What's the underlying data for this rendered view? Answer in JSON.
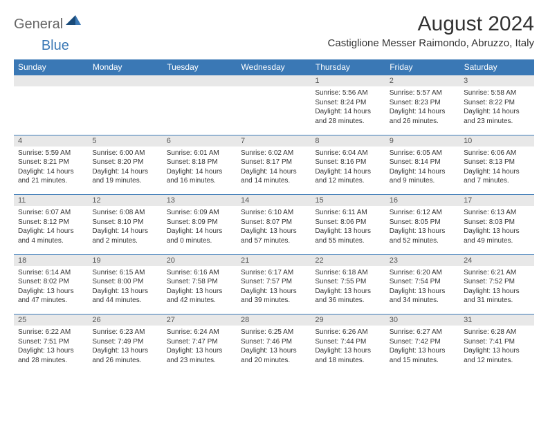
{
  "logo": {
    "part1": "General",
    "part2": "Blue"
  },
  "title": "August 2024",
  "location": "Castiglione Messer Raimondo, Abruzzo, Italy",
  "day_headers": [
    "Sunday",
    "Monday",
    "Tuesday",
    "Wednesday",
    "Thursday",
    "Friday",
    "Saturday"
  ],
  "colors": {
    "header_bg": "#3a78b5",
    "header_text": "#ffffff",
    "daynum_bg": "#e8e8e8",
    "border": "#3a78b5",
    "logo_gray": "#666666",
    "logo_blue": "#3a78b5"
  },
  "weeks": [
    [
      null,
      null,
      null,
      null,
      {
        "n": "1",
        "sr": "5:56 AM",
        "ss": "8:24 PM",
        "dl": "14 hours and 28 minutes."
      },
      {
        "n": "2",
        "sr": "5:57 AM",
        "ss": "8:23 PM",
        "dl": "14 hours and 26 minutes."
      },
      {
        "n": "3",
        "sr": "5:58 AM",
        "ss": "8:22 PM",
        "dl": "14 hours and 23 minutes."
      }
    ],
    [
      {
        "n": "4",
        "sr": "5:59 AM",
        "ss": "8:21 PM",
        "dl": "14 hours and 21 minutes."
      },
      {
        "n": "5",
        "sr": "6:00 AM",
        "ss": "8:20 PM",
        "dl": "14 hours and 19 minutes."
      },
      {
        "n": "6",
        "sr": "6:01 AM",
        "ss": "8:18 PM",
        "dl": "14 hours and 16 minutes."
      },
      {
        "n": "7",
        "sr": "6:02 AM",
        "ss": "8:17 PM",
        "dl": "14 hours and 14 minutes."
      },
      {
        "n": "8",
        "sr": "6:04 AM",
        "ss": "8:16 PM",
        "dl": "14 hours and 12 minutes."
      },
      {
        "n": "9",
        "sr": "6:05 AM",
        "ss": "8:14 PM",
        "dl": "14 hours and 9 minutes."
      },
      {
        "n": "10",
        "sr": "6:06 AM",
        "ss": "8:13 PM",
        "dl": "14 hours and 7 minutes."
      }
    ],
    [
      {
        "n": "11",
        "sr": "6:07 AM",
        "ss": "8:12 PM",
        "dl": "14 hours and 4 minutes."
      },
      {
        "n": "12",
        "sr": "6:08 AM",
        "ss": "8:10 PM",
        "dl": "14 hours and 2 minutes."
      },
      {
        "n": "13",
        "sr": "6:09 AM",
        "ss": "8:09 PM",
        "dl": "14 hours and 0 minutes."
      },
      {
        "n": "14",
        "sr": "6:10 AM",
        "ss": "8:07 PM",
        "dl": "13 hours and 57 minutes."
      },
      {
        "n": "15",
        "sr": "6:11 AM",
        "ss": "8:06 PM",
        "dl": "13 hours and 55 minutes."
      },
      {
        "n": "16",
        "sr": "6:12 AM",
        "ss": "8:05 PM",
        "dl": "13 hours and 52 minutes."
      },
      {
        "n": "17",
        "sr": "6:13 AM",
        "ss": "8:03 PM",
        "dl": "13 hours and 49 minutes."
      }
    ],
    [
      {
        "n": "18",
        "sr": "6:14 AM",
        "ss": "8:02 PM",
        "dl": "13 hours and 47 minutes."
      },
      {
        "n": "19",
        "sr": "6:15 AM",
        "ss": "8:00 PM",
        "dl": "13 hours and 44 minutes."
      },
      {
        "n": "20",
        "sr": "6:16 AM",
        "ss": "7:58 PM",
        "dl": "13 hours and 42 minutes."
      },
      {
        "n": "21",
        "sr": "6:17 AM",
        "ss": "7:57 PM",
        "dl": "13 hours and 39 minutes."
      },
      {
        "n": "22",
        "sr": "6:18 AM",
        "ss": "7:55 PM",
        "dl": "13 hours and 36 minutes."
      },
      {
        "n": "23",
        "sr": "6:20 AM",
        "ss": "7:54 PM",
        "dl": "13 hours and 34 minutes."
      },
      {
        "n": "24",
        "sr": "6:21 AM",
        "ss": "7:52 PM",
        "dl": "13 hours and 31 minutes."
      }
    ],
    [
      {
        "n": "25",
        "sr": "6:22 AM",
        "ss": "7:51 PM",
        "dl": "13 hours and 28 minutes."
      },
      {
        "n": "26",
        "sr": "6:23 AM",
        "ss": "7:49 PM",
        "dl": "13 hours and 26 minutes."
      },
      {
        "n": "27",
        "sr": "6:24 AM",
        "ss": "7:47 PM",
        "dl": "13 hours and 23 minutes."
      },
      {
        "n": "28",
        "sr": "6:25 AM",
        "ss": "7:46 PM",
        "dl": "13 hours and 20 minutes."
      },
      {
        "n": "29",
        "sr": "6:26 AM",
        "ss": "7:44 PM",
        "dl": "13 hours and 18 minutes."
      },
      {
        "n": "30",
        "sr": "6:27 AM",
        "ss": "7:42 PM",
        "dl": "13 hours and 15 minutes."
      },
      {
        "n": "31",
        "sr": "6:28 AM",
        "ss": "7:41 PM",
        "dl": "13 hours and 12 minutes."
      }
    ]
  ],
  "labels": {
    "sunrise": "Sunrise: ",
    "sunset": "Sunset: ",
    "daylight": "Daylight: "
  }
}
